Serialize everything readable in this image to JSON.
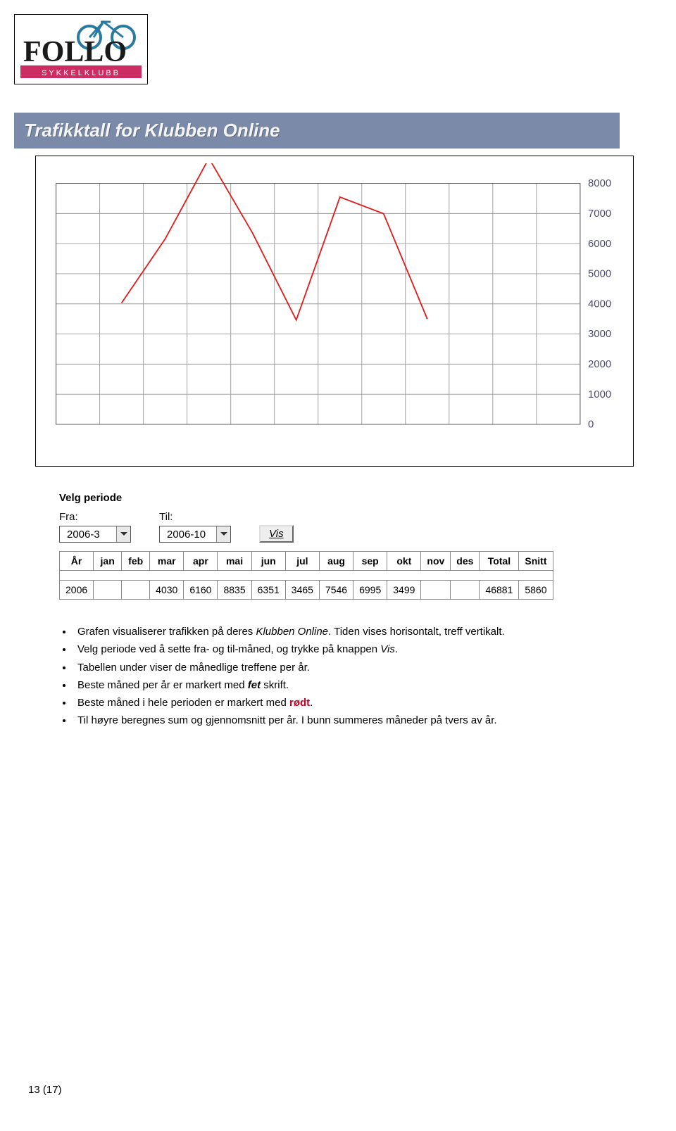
{
  "logo": {
    "top_text": "FOLLO",
    "bottom_text": "SYKKELKLUBB",
    "name_color": "#1a1a1a",
    "band_color": "#cc2e63",
    "bike_color": "#2a7aa0"
  },
  "title": "Trafikktall for Klubben Online",
  "chart": {
    "type": "line",
    "x_slots": 12,
    "ylim": [
      0,
      8000
    ],
    "ytick_step": 1000,
    "ytick_labels": [
      "0",
      "1000",
      "2000",
      "3000",
      "4000",
      "5000",
      "6000",
      "7000",
      "8000"
    ],
    "grid_color": "#9a9a9a",
    "background_color": "#ffffff",
    "line_color": "#e02020",
    "line_width": 2,
    "ytick_fontsize": 16,
    "ytick_color": "#4a4a6a",
    "series_x": [
      2,
      3,
      4,
      5,
      6,
      7,
      8,
      9
    ],
    "series_y": [
      4030,
      6160,
      8835,
      6351,
      3465,
      7546,
      6995,
      3499
    ]
  },
  "periode": {
    "heading": "Velg periode",
    "fra_label": "Fra:",
    "til_label": "Til:",
    "fra_value": "2006-3",
    "til_value": "2006-10",
    "vis_label": "Vis"
  },
  "table": {
    "columns": [
      "År",
      "jan",
      "feb",
      "mar",
      "apr",
      "mai",
      "jun",
      "jul",
      "aug",
      "sep",
      "okt",
      "nov",
      "des",
      "Total",
      "Snitt"
    ],
    "row_year": "2006",
    "row": [
      "",
      "",
      "4030",
      "6160",
      "8835",
      "6351",
      "3465",
      "7546",
      "6995",
      "3499",
      "",
      "",
      "46881",
      "5860"
    ]
  },
  "bullets": {
    "l1a": "Grafen visualiserer trafikken på deres ",
    "l1b": "Klubben Online",
    "l1c": ". Tiden vises horisontalt, treff vertikalt.",
    "l2a": "Velg periode ved å sette fra- og til-måned, og trykke på knappen ",
    "l2b": "Vis",
    "l2c": ".",
    "l3": "Tabellen under viser de månedlige treffene per år.",
    "l4a": "Beste måned per år er markert med ",
    "l4b": "fet",
    "l4c": " skrift.",
    "l5a": "Beste måned i hele perioden er markert med ",
    "l5b": "rødt",
    "l5c": ".",
    "l6": "Til høyre beregnes sum og gjennomsnitt per år. I bunn summeres måneder på tvers av år."
  },
  "footer": "13 (17)"
}
